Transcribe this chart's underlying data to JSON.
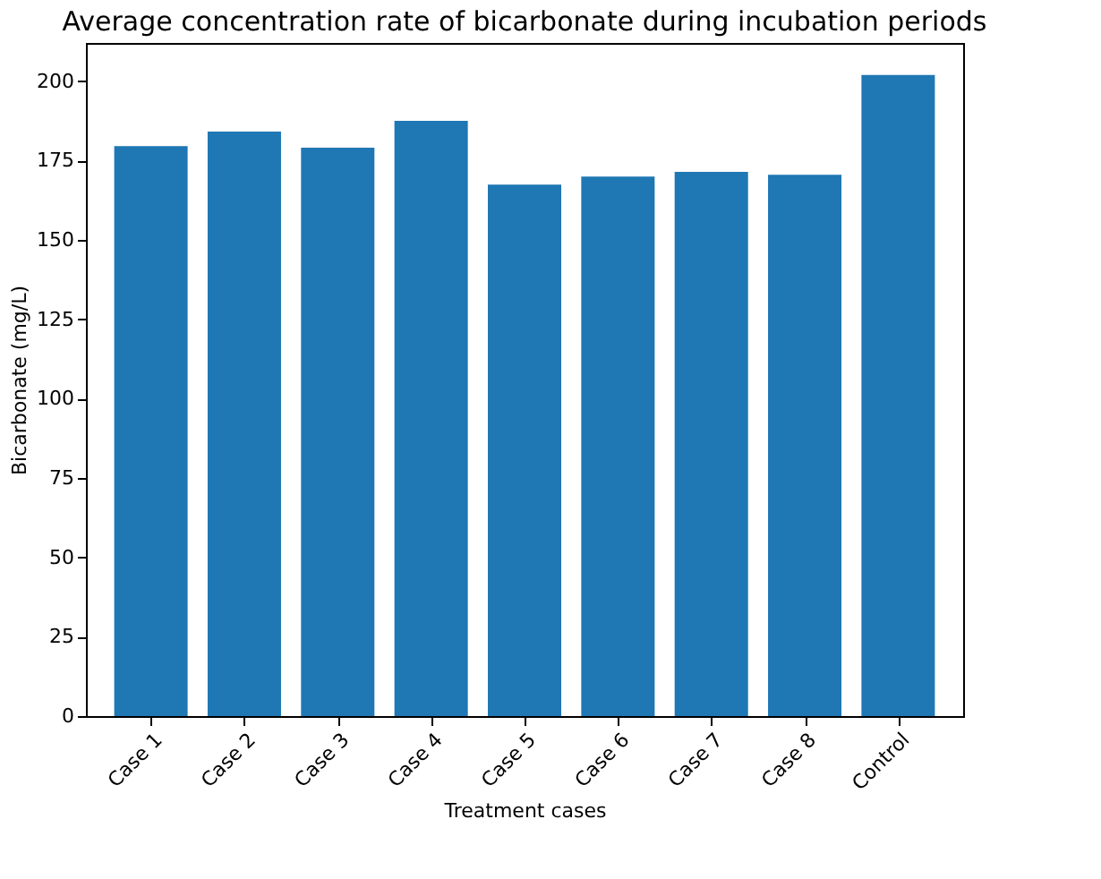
{
  "chart_data": {
    "type": "bar",
    "title": "Average concentration rate of bicarbonate during incubation periods",
    "xlabel": "Treatment cases",
    "ylabel": "Bicarbonate (mg/L)",
    "categories": [
      "Case 1",
      "Case 2",
      "Case 3",
      "Case 4",
      "Case 5",
      "Case 6",
      "Case 7",
      "Case 8",
      "Control"
    ],
    "values": [
      179.5,
      184.1,
      179.0,
      187.5,
      167.4,
      169.9,
      171.4,
      170.5,
      201.9
    ],
    "color": "#1f77b4",
    "ylim": [
      0,
      212
    ],
    "yticks": [
      0,
      25,
      50,
      75,
      100,
      125,
      150,
      175,
      200
    ],
    "grid": false
  }
}
